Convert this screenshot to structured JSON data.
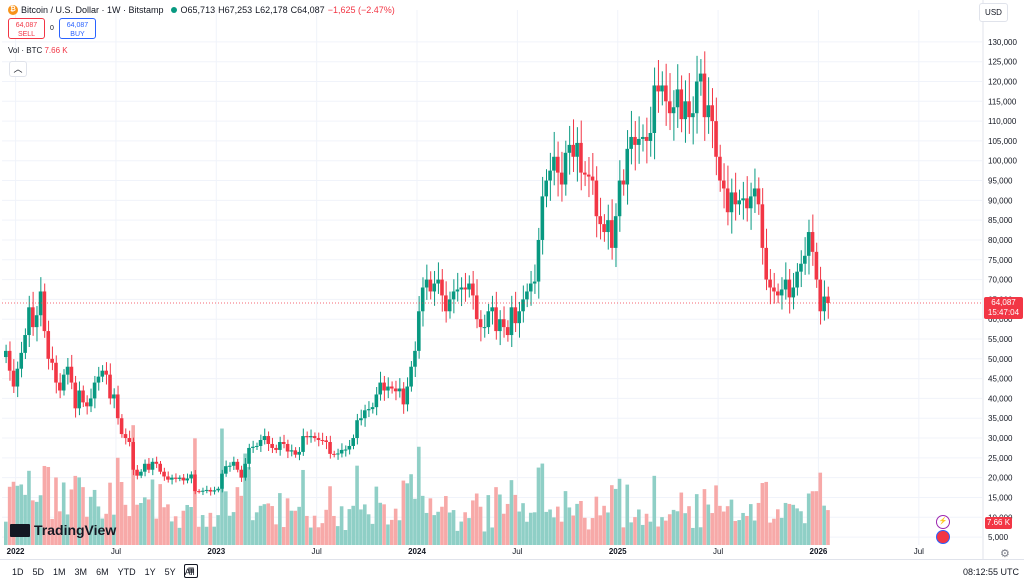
{
  "header": {
    "symbol": "Bitcoin / U.S. Dollar · 1W · Bitstamp",
    "open": "O65,713",
    "high": "H67,253",
    "low": "L62,178",
    "close": "C64,087",
    "change": "−1,625 (−2.47%)",
    "coin_icon": "bitcoin-icon",
    "market_status_icon": "market-open-dot"
  },
  "trade": {
    "sell_price": "64,087",
    "sell_label": "SELL",
    "spread": "0",
    "buy_price": "64,087",
    "buy_label": "BUY"
  },
  "volume_legend": {
    "label": "Vol · BTC",
    "value": "7.66 K"
  },
  "currency_button": "USD",
  "last_price": {
    "price": "64,087",
    "countdown": "15:47:04"
  },
  "volume_tag": "7.66 K",
  "brand": "TradingView",
  "timeframes": [
    "1D",
    "5D",
    "1M",
    "3M",
    "6M",
    "YTD",
    "1Y",
    "5Y",
    "All"
  ],
  "clock": "08:12:55 UTC",
  "colors": {
    "up": "#089981",
    "down": "#f23645",
    "up_volume": "#8fcfc6",
    "down_volume": "#f7a9a8",
    "grid": "#f0f3fa"
  },
  "chart_data": {
    "type": "candlestick",
    "symbol": "BTCUSD",
    "interval": "1W",
    "price_axis": {
      "ticks": [
        "130,000",
        "125,000",
        "120,000",
        "115,000",
        "110,000",
        "105,000",
        "100,000",
        "95,000",
        "90,000",
        "85,000",
        "80,000",
        "75,000",
        "70,000",
        "65,000",
        "60,000",
        "55,000",
        "50,000",
        "45,000",
        "40,000",
        "35,000",
        "30,000",
        "25,000",
        "20,000",
        "15,000",
        "10,000",
        "5,000"
      ],
      "range": [
        3000,
        133000
      ]
    },
    "time_axis": {
      "labels": [
        "2022",
        "Jul",
        "2023",
        "Jul",
        "2024",
        "Jul",
        "2025",
        "Jul",
        "2026",
        "Jul"
      ],
      "label_weeks": [
        3,
        29,
        55,
        81,
        107,
        133,
        159,
        185,
        211,
        237
      ]
    },
    "last_close": 64087,
    "weekly_closes": [
      52000,
      47000,
      43000,
      47500,
      51500,
      56000,
      63000,
      58000,
      61000,
      67000,
      57000,
      50000,
      49000,
      44000,
      42000,
      46000,
      48000,
      44000,
      37500,
      42000,
      39000,
      38000,
      40000,
      44000,
      45500,
      47000,
      46000,
      40000,
      41000,
      35000,
      31000,
      30000,
      29000,
      22000,
      20500,
      21500,
      23500,
      22000,
      24000,
      23500,
      21500,
      20300,
      19500,
      20000,
      19700,
      20000,
      19300,
      19800,
      20800,
      16600,
      16500,
      16700,
      16900,
      16500,
      16800,
      17200,
      21000,
      22900,
      23000,
      24000,
      22000,
      20000,
      23500,
      27500,
      27800,
      28000,
      29500,
      30500,
      28500,
      27500,
      27000,
      29000,
      28500,
      26600,
      26900,
      25800,
      26500,
      30500,
      30200,
      30500,
      30000,
      29500,
      29400,
      29000,
      26000,
      25900,
      26100,
      27000,
      27100,
      28000,
      30000,
      34500,
      35000,
      37000,
      37300,
      37800,
      41000,
      44000,
      42000,
      43000,
      42500,
      41800,
      42500,
      38500,
      43000,
      48000,
      52000,
      62000,
      68000,
      70000,
      67000,
      69000,
      70000,
      66000,
      62000,
      65000,
      67000,
      67500,
      68000,
      67500,
      69000,
      66000,
      60000,
      58000,
      58000,
      62000,
      63000,
      57000,
      60000,
      58000,
      56000,
      63000,
      59000,
      62000,
      65000,
      67000,
      69000,
      69500,
      80000,
      91000,
      95000,
      97500,
      101000,
      97000,
      94000,
      102000,
      104000,
      101000,
      104500,
      97000,
      96500,
      96000,
      95000,
      86000,
      84000,
      82000,
      85000,
      78000,
      86000,
      95000,
      94000,
      103000,
      106000,
      104000,
      105500,
      106000,
      105000,
      107000,
      119000,
      117500,
      119000,
      115000,
      112000,
      113500,
      118000,
      110500,
      115000,
      111000,
      112000,
      120000,
      122000,
      111000,
      114000,
      110000,
      101000,
      95000,
      93000,
      87000,
      92000,
      89000,
      90000,
      90500,
      88000,
      91000,
      93000,
      89000,
      78000,
      70000,
      68000,
      67000,
      66000,
      67500,
      70000,
      65500,
      68000,
      72000,
      74000,
      76000,
      82000,
      77000,
      70000,
      62000,
      65713,
      64087
    ],
    "volume_range": [
      0,
      150000
    ]
  }
}
